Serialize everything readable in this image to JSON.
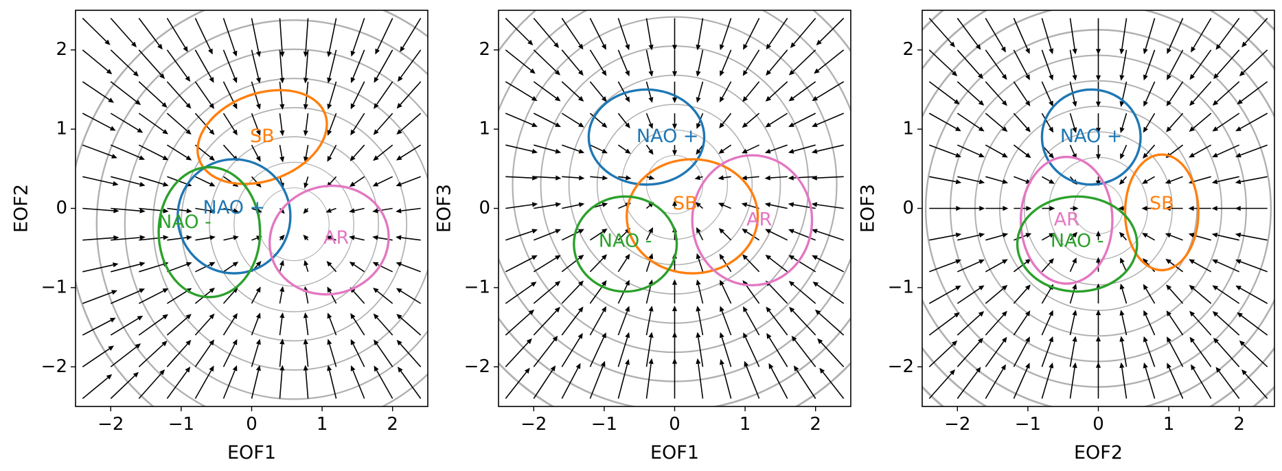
{
  "chart_data": [
    {
      "type": "vector-field",
      "xlabel": "EOF1",
      "ylabel": "EOF2",
      "xlim": [
        -2.5,
        2.5
      ],
      "ylim": [
        -2.5,
        2.5
      ],
      "xticks": [
        "−2",
        "−1",
        "0",
        "1",
        "2"
      ],
      "yticks": [
        "−2",
        "−1",
        "0",
        "1",
        "2"
      ],
      "contour_center": [
        0.6,
        -0.2
      ],
      "contour_levels": [
        0.5,
        0.85,
        1.2,
        1.6,
        2.0,
        2.4,
        2.8,
        3.2
      ],
      "regimes": [
        {
          "label": "SB",
          "color": "#ff7f0e",
          "center": [
            0.15,
            0.9
          ],
          "radii": [
            0.95,
            0.55
          ],
          "angle": 20,
          "text_at": [
            0.15,
            0.9
          ]
        },
        {
          "label": "NAO +",
          "color": "#1f77b4",
          "center": [
            -0.25,
            -0.1
          ],
          "radii": [
            0.8,
            0.72
          ],
          "angle": 0,
          "text_at": [
            -0.25,
            0.0
          ]
        },
        {
          "label": "NAO -",
          "color": "#2ca02c",
          "center": [
            -0.6,
            -0.3
          ],
          "radii": [
            0.72,
            0.82
          ],
          "angle": 0,
          "text_at": [
            -0.95,
            -0.18
          ]
        },
        {
          "label": "AR",
          "color": "#e377c2",
          "center": [
            1.1,
            -0.4
          ],
          "radii": [
            0.85,
            0.68
          ],
          "angle": 15,
          "text_at": [
            1.2,
            -0.38
          ]
        }
      ]
    },
    {
      "type": "vector-field",
      "xlabel": "EOF1",
      "ylabel": "EOF3",
      "xlim": [
        -2.5,
        2.5
      ],
      "ylim": [
        -2.5,
        2.5
      ],
      "xticks": [
        "−2",
        "−1",
        "0",
        "1",
        "2"
      ],
      "yticks": [
        "−2",
        "−1",
        "0",
        "1",
        "2"
      ],
      "contour_center": [
        0.0,
        0.3
      ],
      "contour_levels": [
        0.4,
        0.75,
        1.1,
        1.5,
        1.9,
        2.3,
        2.7,
        3.1,
        3.5
      ],
      "regimes": [
        {
          "label": "NAO +",
          "color": "#1f77b4",
          "center": [
            -0.4,
            0.9
          ],
          "radii": [
            0.82,
            0.6
          ],
          "angle": 0,
          "text_at": [
            -0.1,
            0.9
          ]
        },
        {
          "label": "SB",
          "color": "#ff7f0e",
          "center": [
            0.25,
            -0.1
          ],
          "radii": [
            0.93,
            0.72
          ],
          "angle": 0,
          "text_at": [
            0.15,
            0.05
          ]
        },
        {
          "label": "AR",
          "color": "#e377c2",
          "center": [
            1.1,
            -0.15
          ],
          "radii": [
            0.85,
            0.82
          ],
          "angle": 0,
          "text_at": [
            1.2,
            -0.15
          ]
        },
        {
          "label": "NAO -",
          "color": "#2ca02c",
          "center": [
            -0.7,
            -0.45
          ],
          "radii": [
            0.73,
            0.6
          ],
          "angle": 0,
          "text_at": [
            -0.7,
            -0.42
          ]
        }
      ]
    },
    {
      "type": "vector-field",
      "xlabel": "EOF2",
      "ylabel": "EOF3",
      "xlim": [
        -2.5,
        2.5
      ],
      "ylim": [
        -2.5,
        2.5
      ],
      "xticks": [
        "−2",
        "−1",
        "0",
        "1",
        "2"
      ],
      "yticks": [
        "−2",
        "−1",
        "0",
        "1",
        "2"
      ],
      "contour_center": [
        0.0,
        0.0
      ],
      "contour_levels": [
        0.35,
        0.7,
        1.05,
        1.4,
        1.75,
        2.1,
        2.45,
        2.8,
        3.15,
        3.5
      ],
      "regimes": [
        {
          "label": "NAO +",
          "color": "#1f77b4",
          "center": [
            -0.1,
            0.9
          ],
          "radii": [
            0.7,
            0.6
          ],
          "angle": 0,
          "text_at": [
            -0.1,
            0.9
          ]
        },
        {
          "label": "SB",
          "color": "#ff7f0e",
          "center": [
            0.9,
            -0.05
          ],
          "radii": [
            0.52,
            0.73
          ],
          "angle": 0,
          "text_at": [
            0.9,
            0.05
          ]
        },
        {
          "label": "AR",
          "color": "#e377c2",
          "center": [
            -0.45,
            -0.15
          ],
          "radii": [
            0.65,
            0.8
          ],
          "angle": 0,
          "text_at": [
            -0.45,
            -0.15
          ]
        },
        {
          "label": "NAO -",
          "color": "#2ca02c",
          "center": [
            -0.3,
            -0.45
          ],
          "radii": [
            0.85,
            0.6
          ],
          "angle": 0,
          "text_at": [
            -0.3,
            -0.42
          ]
        }
      ]
    }
  ]
}
